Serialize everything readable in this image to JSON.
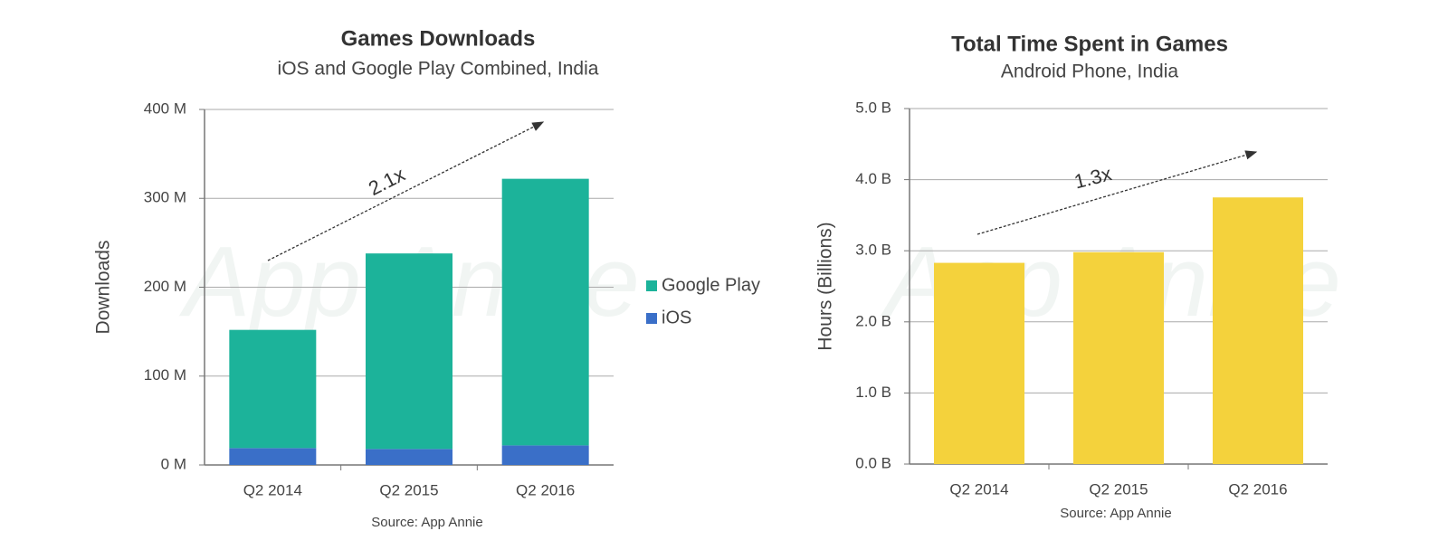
{
  "chart_data": [
    {
      "type": "bar",
      "stacked": true,
      "title": "Games Downloads",
      "subtitle": "iOS and Google Play Combined, India",
      "y_label": "Downloads",
      "source": "Source: App Annie",
      "annotation": "2.1x",
      "watermark": "App Annie",
      "categories": [
        "Q2 2014",
        "Q2 2015",
        "Q2 2016"
      ],
      "series": [
        {
          "name": "iOS",
          "color": "#3a6fc8",
          "values": [
            19,
            18,
            22
          ]
        },
        {
          "name": "Google Play",
          "color": "#1cb39a",
          "values": [
            133,
            220,
            300
          ]
        }
      ],
      "ylim": [
        0,
        400
      ],
      "yticks": [
        {
          "value": 0,
          "label": "0 M"
        },
        {
          "value": 100,
          "label": "100 M"
        },
        {
          "value": 200,
          "label": "200 M"
        },
        {
          "value": 300,
          "label": "300 M"
        },
        {
          "value": 400,
          "label": "400 M"
        }
      ],
      "grid": true,
      "legend": "right"
    },
    {
      "type": "bar",
      "title": "Total Time Spent in Games",
      "subtitle": "Android Phone, India",
      "y_label": "Hours (Billions)",
      "source": "Source: App Annie",
      "annotation": "1.3x",
      "watermark": "App Annie",
      "categories": [
        "Q2 2014",
        "Q2 2015",
        "Q2 2016"
      ],
      "values": [
        2.83,
        2.98,
        3.75
      ],
      "color": "#f4d23c",
      "ylim": [
        0,
        5
      ],
      "yticks": [
        {
          "value": 0,
          "label": "0.0 B"
        },
        {
          "value": 1,
          "label": "1.0 B"
        },
        {
          "value": 2,
          "label": "2.0 B"
        },
        {
          "value": 3,
          "label": "3.0 B"
        },
        {
          "value": 4,
          "label": "4.0 B"
        },
        {
          "value": 5,
          "label": "5.0 B"
        }
      ],
      "grid": true
    }
  ]
}
